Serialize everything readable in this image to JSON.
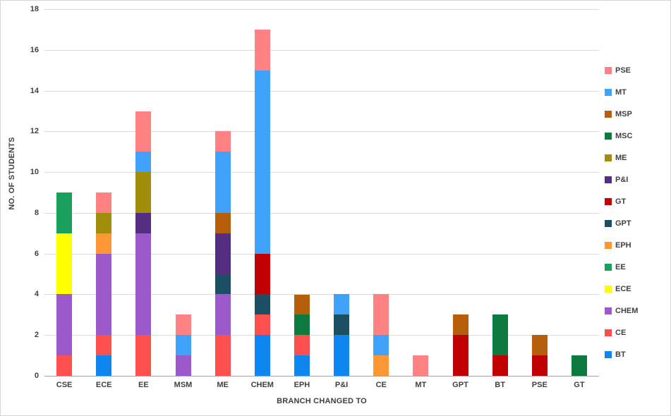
{
  "chart_data": {
    "type": "bar",
    "stacked": true,
    "title": "",
    "xlabel": "BRANCH CHANGED TO",
    "ylabel": "NO. OF STUDENTS",
    "ylim": [
      0,
      18
    ],
    "yticks": [
      0,
      2,
      4,
      6,
      8,
      10,
      12,
      14,
      16,
      18
    ],
    "grid": true,
    "legend_position": "right",
    "categories": [
      "CSE",
      "ECE",
      "EE",
      "MSM",
      "ME",
      "CHEM",
      "EPH",
      "P&I",
      "CE",
      "MT",
      "GPT",
      "BT",
      "PSE",
      "GT"
    ],
    "series": [
      {
        "name": "BT",
        "color": "#0E86F0",
        "values": [
          0,
          1,
          0,
          0,
          0,
          2,
          1,
          2,
          0,
          0,
          0,
          0,
          0,
          0
        ]
      },
      {
        "name": "CE",
        "color": "#FF5050",
        "values": [
          1,
          1,
          2,
          0,
          2,
          1,
          1,
          0,
          0,
          0,
          0,
          0,
          0,
          0
        ]
      },
      {
        "name": "CHEM",
        "color": "#9B59C9",
        "values": [
          3,
          4,
          5,
          1,
          2,
          0,
          0,
          0,
          0,
          0,
          0,
          0,
          0,
          0
        ]
      },
      {
        "name": "ECE",
        "color": "#FFFF00",
        "values": [
          3,
          0,
          0,
          0,
          0,
          0,
          0,
          0,
          0,
          0,
          0,
          0,
          0,
          0
        ]
      },
      {
        "name": "EE",
        "color": "#18A05C",
        "values": [
          2,
          0,
          0,
          0,
          0,
          0,
          0,
          0,
          0,
          0,
          0,
          0,
          0,
          0
        ]
      },
      {
        "name": "EPH",
        "color": "#FF9833",
        "values": [
          0,
          1,
          0,
          0,
          0,
          0,
          0,
          0,
          1,
          0,
          0,
          0,
          0,
          0
        ]
      },
      {
        "name": "GPT",
        "color": "#1C4F63",
        "values": [
          0,
          0,
          0,
          0,
          1,
          1,
          0,
          1,
          0,
          0,
          0,
          0,
          0,
          0
        ]
      },
      {
        "name": "GT",
        "color": "#C00000",
        "values": [
          0,
          0,
          0,
          0,
          0,
          2,
          0,
          0,
          0,
          0,
          2,
          1,
          1,
          0
        ]
      },
      {
        "name": "P&I",
        "color": "#542E81",
        "values": [
          0,
          0,
          1,
          0,
          2,
          0,
          0,
          0,
          0,
          0,
          0,
          0,
          0,
          0
        ]
      },
      {
        "name": "ME",
        "color": "#A08E0B",
        "values": [
          0,
          1,
          2,
          0,
          0,
          0,
          0,
          0,
          0,
          0,
          0,
          0,
          0,
          0
        ]
      },
      {
        "name": "MSC",
        "color": "#0E7A3F",
        "values": [
          0,
          0,
          0,
          0,
          0,
          0,
          1,
          0,
          0,
          0,
          0,
          2,
          0,
          1
        ]
      },
      {
        "name": "MSP",
        "color": "#B55F0D",
        "values": [
          0,
          0,
          0,
          0,
          1,
          0,
          1,
          0,
          0,
          0,
          1,
          0,
          1,
          0
        ]
      },
      {
        "name": "MT",
        "color": "#41A2FC",
        "values": [
          0,
          0,
          1,
          1,
          3,
          9,
          0,
          1,
          1,
          0,
          0,
          0,
          0,
          0
        ]
      },
      {
        "name": "PSE",
        "color": "#FF8282",
        "values": [
          0,
          1,
          2,
          1,
          1,
          2,
          0,
          0,
          2,
          1,
          0,
          0,
          0,
          0
        ]
      }
    ],
    "totals": {
      "CSE": 9,
      "ECE": 9,
      "EE": 13,
      "MSM": 3,
      "ME": 12,
      "CHEM": 17,
      "EPH": 4,
      "P&I": 4,
      "CE": 4,
      "MT": 1,
      "GPT": 3,
      "BT": 3,
      "PSE": 2,
      "GT": 1
    }
  }
}
